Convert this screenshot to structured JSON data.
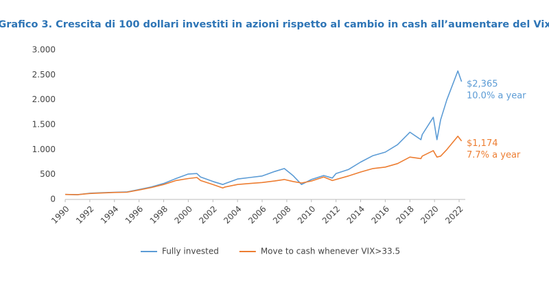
{
  "chart_data": {
    "type": "line",
    "title": "Grafico 3. Crescita di 100 dollari investiti in azioni rispetto al cambio in cash all’aumentare del Vix",
    "x": [
      1990,
      1991,
      1992,
      1993,
      1994,
      1995,
      1996,
      1997,
      1998,
      1999,
      2000,
      2000.7,
      2001,
      2002,
      2002.8,
      2003,
      2004,
      2005,
      2006,
      2007,
      2007.8,
      2008.5,
      2009.2,
      2010,
      2011,
      2011.7,
      2012,
      2013,
      2014,
      2015,
      2016,
      2017,
      2018,
      2018.9,
      2019,
      2019.9,
      2020.2,
      2020.5,
      2021,
      2021.9,
      2022.2
    ],
    "series": [
      {
        "name": "Fully invested",
        "color": "#5b9bd5",
        "values": [
          100,
          95,
          125,
          135,
          145,
          150,
          200,
          250,
          320,
          420,
          510,
          520,
          450,
          360,
          300,
          320,
          410,
          440,
          470,
          560,
          620,
          480,
          300,
          400,
          480,
          430,
          520,
          600,
          750,
          880,
          950,
          1100,
          1350,
          1200,
          1300,
          1650,
          1200,
          1600,
          2000,
          2580,
          2365
        ]
      },
      {
        "name": "Move to cash whenever VIX>33.5",
        "color": "#ed7d31",
        "values": [
          100,
          95,
          120,
          130,
          140,
          145,
          190,
          240,
          300,
          380,
          420,
          440,
          380,
          300,
          230,
          250,
          300,
          320,
          340,
          370,
          400,
          360,
          330,
          370,
          450,
          380,
          400,
          470,
          550,
          620,
          650,
          720,
          850,
          820,
          870,
          980,
          850,
          870,
          1000,
          1270,
          1174
        ]
      }
    ],
    "annotations": [
      {
        "series": 0,
        "lines": [
          "$2,365",
          "10.0% a year"
        ]
      },
      {
        "series": 1,
        "lines": [
          "$1,174",
          "7.7% a year"
        ]
      }
    ],
    "xlim": [
      1990,
      2022.5
    ],
    "xticks": [
      1990,
      1992,
      1994,
      1996,
      1998,
      2000,
      2002,
      2004,
      2006,
      2008,
      2010,
      2012,
      2014,
      2016,
      2018,
      2020,
      2022
    ],
    "ylim": [
      0,
      3000
    ],
    "yticks": [
      0,
      {
        "value": 500,
        "label": "500"
      },
      {
        "value": 1000,
        "label": "1.000"
      },
      {
        "value": 1500,
        "label": "1.500"
      },
      {
        "value": 2000,
        "label": "2.000"
      },
      {
        "value": 2500,
        "label": "2.500"
      },
      {
        "value": 3000,
        "label": "3.000"
      }
    ],
    "grid": false,
    "legend": "bottom"
  }
}
